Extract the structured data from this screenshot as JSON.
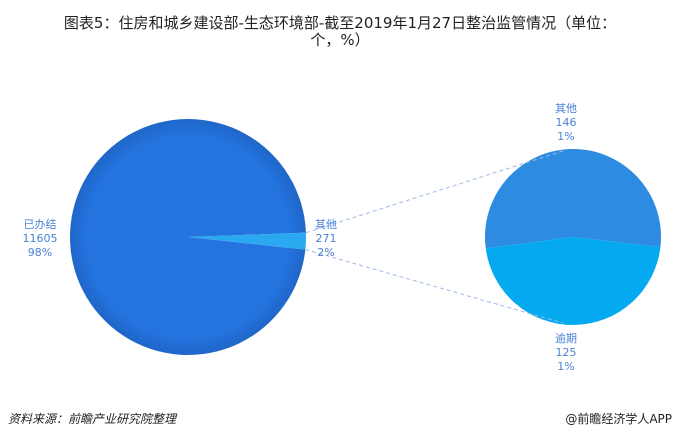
{
  "title_line1": "图表5：住房和城乡建设部-生态环境部-截至2019年1月27日整治监管情况（单位：",
  "title_line2": "个，%）",
  "source": "资料来源：前瞻产业研究院整理",
  "watermark": "@前瞻经济学人APP",
  "chart_data": {
    "type": "pie",
    "title": "图表5：住房和城乡建设部-生态环境部-截至2019年1月27日整治监管情况（单位：个，%）",
    "main_pie": [
      {
        "name": "已办结",
        "value": 11605,
        "percent": "98%",
        "color": "#2474e0"
      },
      {
        "name": "其他",
        "value": 271,
        "percent": "2%",
        "color": "#2aa8f0"
      }
    ],
    "sub_pie": {
      "of": "其他",
      "slices": [
        {
          "name": "其他",
          "value": 146,
          "percent": "1%",
          "color": "#2d8be2"
        },
        {
          "name": "逾期",
          "value": 125,
          "percent": "1%",
          "color": "#05a9f0"
        }
      ]
    }
  }
}
